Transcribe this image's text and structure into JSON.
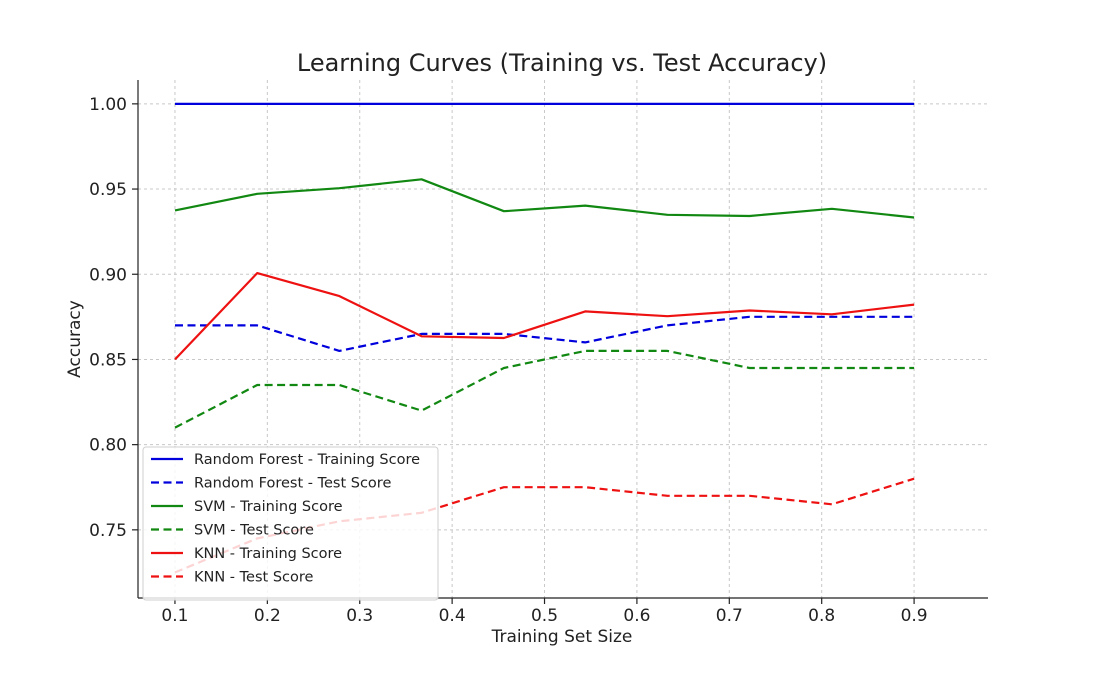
{
  "chart_data": {
    "type": "line",
    "title": "Learning Curves (Training vs. Test Accuracy)",
    "xlabel": "Training Set Size",
    "ylabel": "Accuracy",
    "xlim": [
      0.06,
      0.98
    ],
    "ylim": [
      0.71,
      1.014
    ],
    "xticks": [
      0.1,
      0.2,
      0.3,
      0.4,
      0.5,
      0.6,
      0.7,
      0.8,
      0.9
    ],
    "xtick_labels": [
      "0.1",
      "0.2",
      "0.3",
      "0.4",
      "0.5",
      "0.6",
      "0.7",
      "0.8",
      "0.9"
    ],
    "yticks": [
      0.75,
      0.8,
      0.85,
      0.9,
      0.95,
      1.0
    ],
    "ytick_labels": [
      "0.75",
      "0.80",
      "0.85",
      "0.90",
      "0.95",
      "1.00"
    ],
    "grid": true,
    "legend_position": "lower-left",
    "x": [
      0.1,
      0.189,
      0.278,
      0.367,
      0.456,
      0.544,
      0.633,
      0.722,
      0.811,
      0.9
    ],
    "series": [
      {
        "name": "Random Forest - Training Score",
        "color": "#0000dd",
        "dash": "solid",
        "values": [
          1.0,
          1.0,
          1.0,
          1.0,
          1.0,
          1.0,
          1.0,
          1.0,
          1.0,
          1.0
        ]
      },
      {
        "name": "Random Forest - Test Score",
        "color": "#0000dd",
        "dash": "dashed",
        "values": [
          0.87,
          0.87,
          0.855,
          0.865,
          0.865,
          0.86,
          0.87,
          0.875,
          0.875,
          0.875
        ]
      },
      {
        "name": "SVM - Training Score",
        "color": "#118811",
        "dash": "solid",
        "values": [
          0.9375,
          0.9472,
          0.9505,
          0.9557,
          0.937,
          0.9403,
          0.9349,
          0.9342,
          0.9384,
          0.9333
        ]
      },
      {
        "name": "SVM - Test Score",
        "color": "#118811",
        "dash": "dashed",
        "values": [
          0.81,
          0.835,
          0.835,
          0.82,
          0.845,
          0.855,
          0.855,
          0.845,
          0.845,
          0.845
        ]
      },
      {
        "name": "KNN - Training Score",
        "color": "#ee1111",
        "dash": "solid",
        "values": [
          0.85,
          0.9007,
          0.8872,
          0.8636,
          0.8626,
          0.8782,
          0.8754,
          0.8787,
          0.8765,
          0.8822
        ]
      },
      {
        "name": "KNN - Test Score",
        "color": "#ee1111",
        "dash": "dashed",
        "values": [
          0.725,
          0.745,
          0.755,
          0.76,
          0.775,
          0.775,
          0.77,
          0.77,
          0.765,
          0.78
        ]
      }
    ]
  }
}
